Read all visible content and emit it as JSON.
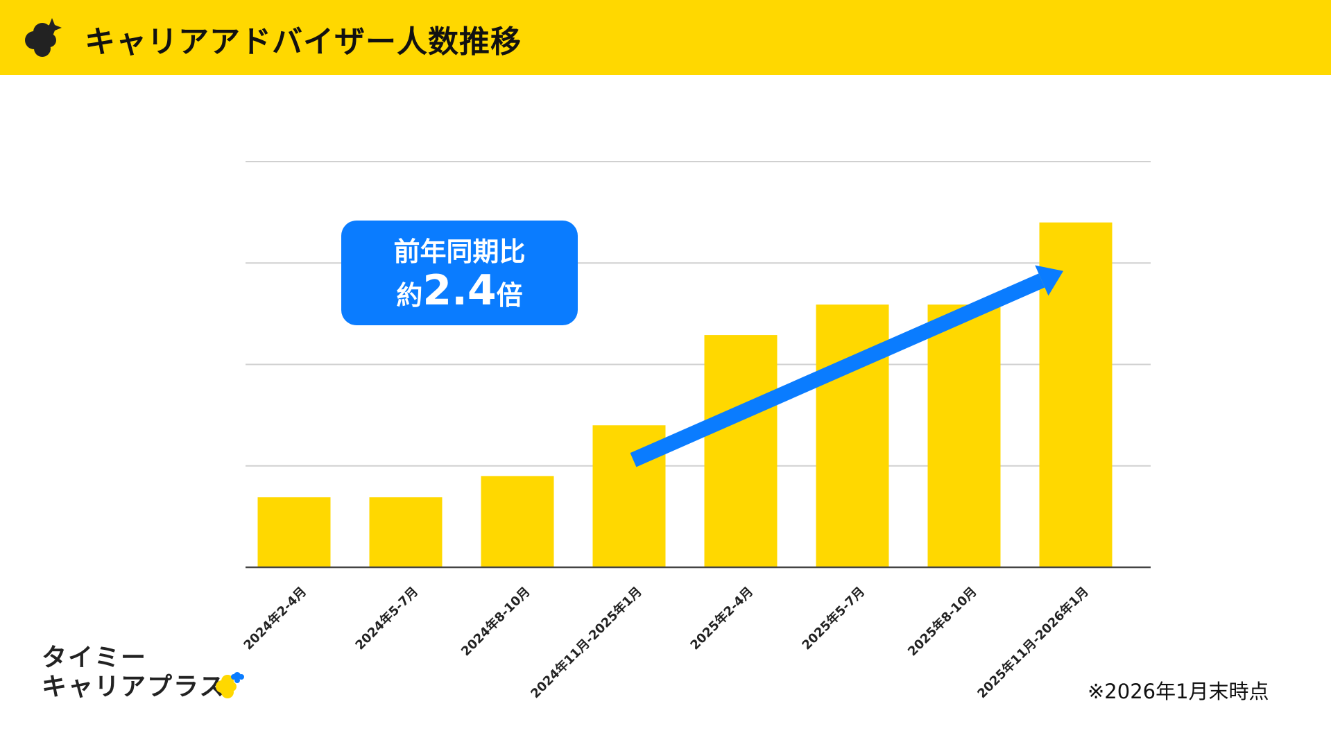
{
  "header": {
    "title": "キャリアアドバイザー人数推移",
    "icon": "clover-sparkle-icon",
    "background": "#FFD800"
  },
  "callout": {
    "line1": "前年同期比",
    "prefix": "約",
    "value": "2.4",
    "suffix": "倍",
    "color": "#0A7CFF"
  },
  "footnote": "※2026年1月末時点",
  "brand": {
    "line1": "タイミー",
    "line2": "キャリアプラス"
  },
  "chart_data": {
    "type": "bar",
    "categories": [
      "2024年2-4月",
      "2024年5-7月",
      "2024年8-10月",
      "2024年11月-2025年1月",
      "2025年2-4月",
      "2025年5-7月",
      "2025年8-10月",
      "2025年11月-2026年1月"
    ],
    "values": [
      0.69,
      0.69,
      0.9,
      1.4,
      2.29,
      2.59,
      2.59,
      3.4
    ],
    "ylim": [
      0,
      4
    ],
    "grid": true,
    "y_tick_labels_shown": false,
    "bar_color": "#FFD800",
    "trend_arrow": {
      "from_category": "2024年11月-2025年1月",
      "to_category": "2025年11月-2026年1月",
      "color": "#0A7CFF"
    }
  }
}
